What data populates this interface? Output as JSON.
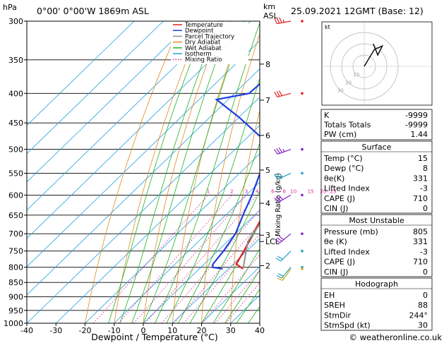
{
  "header": {
    "hpa_unit": "hPa",
    "location": "0°00'  0°00'W  1869m  ASL",
    "km_unit": "km",
    "asl_unit": "ASL",
    "datetime": "25.09.2021  12GMT  (Base: 12)"
  },
  "legend": [
    {
      "label": "Temperature",
      "color": "#e02020"
    },
    {
      "label": "Dewpoint",
      "color": "#1e3ee0"
    },
    {
      "label": "Parcel Trajectory",
      "color": "#909090"
    },
    {
      "label": "Dry Adiabat",
      "color": "#e08a20"
    },
    {
      "label": "Wet Adiabat",
      "color": "#20b020"
    },
    {
      "label": "Isotherm",
      "color": "#20a0e0"
    },
    {
      "label": "Mixing Ratio",
      "color": "#e020a0"
    }
  ],
  "chart_data": {
    "type": "line",
    "title": "",
    "xlabel": "Dewpoint / Temperature (°C)",
    "ylabel": "hPa",
    "right_axis_label": "Mixing Ratio (g/kg)",
    "xlim": [
      -40,
      40
    ],
    "ylim": [
      1000,
      300
    ],
    "y_scale": "log",
    "skew": true,
    "x_ticks": [
      -40,
      -30,
      -20,
      -10,
      0,
      10,
      20,
      30,
      40
    ],
    "pressure_levels": [
      300,
      350,
      400,
      450,
      500,
      550,
      600,
      650,
      700,
      750,
      800,
      850,
      900,
      950,
      1000
    ],
    "height_km_ticks": [
      {
        "label": "8",
        "p": 356
      },
      {
        "label": "7",
        "p": 411
      },
      {
        "label": "6",
        "p": 473
      },
      {
        "label": "5",
        "p": 543
      },
      {
        "label": "4",
        "p": 620
      },
      {
        "label": "3",
        "p": 704
      },
      {
        "label": "LCL",
        "p": 722
      },
      {
        "label": "2",
        "p": 795
      }
    ],
    "mixing_ratio_labels": [
      "1",
      "2",
      "3",
      "4",
      "6",
      "8",
      "10",
      "15",
      "20",
      "25"
    ],
    "series": [
      {
        "name": "Temperature",
        "color": "#e02020",
        "points": [
          [
            805,
            15
          ],
          [
            790,
            11
          ],
          [
            750,
            9
          ],
          [
            700,
            6
          ],
          [
            650,
            3
          ],
          [
            600,
            -1
          ],
          [
            550,
            -6
          ],
          [
            500,
            -11
          ],
          [
            450,
            -18
          ],
          [
            400,
            -24
          ],
          [
            350,
            -33
          ],
          [
            300,
            -44
          ]
        ]
      },
      {
        "name": "Dewpoint",
        "color": "#1e3ee0",
        "points": [
          [
            805,
            8
          ],
          [
            800,
            4
          ],
          [
            790,
            3
          ],
          [
            750,
            2
          ],
          [
            700,
            0
          ],
          [
            650,
            -4
          ],
          [
            600,
            -8
          ],
          [
            550,
            -13
          ],
          [
            500,
            -18
          ],
          [
            480,
            -24
          ],
          [
            440,
            -40
          ],
          [
            410,
            -54
          ],
          [
            400,
            -45
          ],
          [
            360,
            -44
          ],
          [
            345,
            -46
          ],
          [
            300,
            -55
          ]
        ]
      },
      {
        "name": "Parcel Trajectory",
        "color": "#909090",
        "points": [
          [
            805,
            15
          ],
          [
            722,
            7
          ],
          [
            700,
            6
          ],
          [
            650,
            4
          ],
          [
            600,
            1
          ],
          [
            550,
            -3
          ],
          [
            500,
            -8
          ],
          [
            450,
            -14
          ],
          [
            400,
            -21
          ],
          [
            350,
            -29
          ],
          [
            300,
            -39
          ]
        ]
      }
    ],
    "dry_adiabats_theta_c": [
      -20,
      -10,
      0,
      10,
      20,
      30,
      40,
      50,
      60,
      70,
      80,
      90,
      100,
      110,
      120,
      130
    ],
    "isotherms_c": [
      -110,
      -100,
      -90,
      -80,
      -70,
      -60,
      -50,
      -40,
      -30,
      -20,
      -10,
      0,
      10,
      20,
      30,
      40
    ],
    "wet_adiabats_c": [
      -12,
      -8,
      -4,
      0,
      4,
      8,
      12,
      16,
      20,
      24,
      28,
      32,
      36
    ]
  },
  "hodograph": {
    "label": "kt",
    "ring_labels": [
      "10",
      "20",
      "30"
    ],
    "trace": [
      [
        0,
        0
      ],
      [
        3,
        5
      ],
      [
        9,
        15
      ],
      [
        16,
        18
      ],
      [
        12,
        10
      ],
      [
        8,
        20
      ]
    ]
  },
  "wind_barbs": [
    {
      "p": 300,
      "color": "#e02020",
      "dir": 260,
      "speed": 35
    },
    {
      "p": 400,
      "color": "#e02020",
      "dir": 255,
      "speed": 30
    },
    {
      "p": 500,
      "color": "#8020c0",
      "dir": 250,
      "speed": 35
    },
    {
      "p": 550,
      "color": "#20a0c0",
      "dir": 245,
      "speed": 25
    },
    {
      "p": 600,
      "color": "#8020c0",
      "dir": 240,
      "speed": 30
    },
    {
      "p": 700,
      "color": "#8020c0",
      "dir": 230,
      "speed": 30
    },
    {
      "p": 750,
      "color": "#20a0c0",
      "dir": 225,
      "speed": 20
    },
    {
      "p": 800,
      "color": "#20a0c0",
      "dir": 220,
      "speed": 20
    },
    {
      "p": 805,
      "color": "#d0b020",
      "dir": 215,
      "speed": 15
    }
  ],
  "indices": {
    "top": [
      {
        "label": "K",
        "value": "-9999"
      },
      {
        "label": "Totals Totals",
        "value": "-9999"
      },
      {
        "label": "PW (cm)",
        "value": "1.44"
      }
    ],
    "surface": {
      "title": "Surface",
      "rows": [
        {
          "label": "Temp (°C)",
          "value": "15"
        },
        {
          "label": "Dewp (°C)",
          "value": "8"
        },
        {
          "label": "θe(K)",
          "value": "331"
        },
        {
          "label": "Lifted Index",
          "value": "-3"
        },
        {
          "label": "CAPE (J)",
          "value": "710"
        },
        {
          "label": "CIN (J)",
          "value": "0"
        }
      ]
    },
    "most_unstable": {
      "title": "Most Unstable",
      "rows": [
        {
          "label": "Pressure (mb)",
          "value": "805"
        },
        {
          "label": "θe (K)",
          "value": "331"
        },
        {
          "label": "Lifted Index",
          "value": "-3"
        },
        {
          "label": "CAPE (J)",
          "value": "710"
        },
        {
          "label": "CIN (J)",
          "value": "0"
        }
      ]
    },
    "hodograph_box": {
      "title": "Hodograph",
      "rows": [
        {
          "label": "EH",
          "value": "0"
        },
        {
          "label": "SREH",
          "value": "88"
        },
        {
          "label": "StmDir",
          "value": "244°"
        },
        {
          "label": "StmSpd (kt)",
          "value": "30"
        }
      ]
    }
  },
  "footer": {
    "copyright": "© weatheronline.co.uk"
  }
}
